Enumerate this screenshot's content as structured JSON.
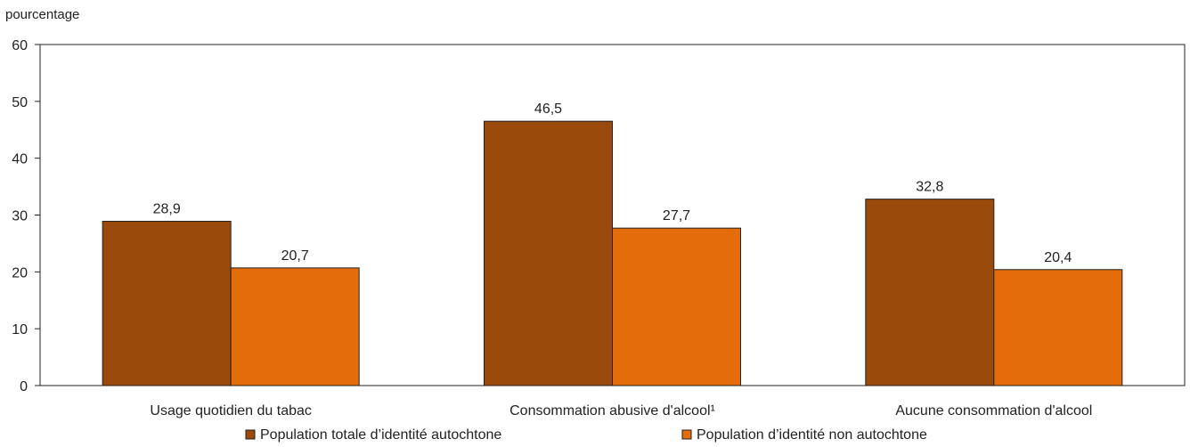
{
  "chart_data": {
    "type": "bar",
    "ylabel": "pourcentage",
    "ylim": [
      0,
      60
    ],
    "yticks": [
      0,
      10,
      20,
      30,
      40,
      50,
      60
    ],
    "grid": false,
    "legend_position": "bottom",
    "categories": [
      "Usage quotidien du tabac",
      "Consommation abusive d'alcool¹",
      "Aucune consommation d'alcool"
    ],
    "series": [
      {
        "name": "Population totale d’identité autochtone",
        "color": "#9a4a0b",
        "values": [
          28.9,
          46.5,
          32.8
        ],
        "labels": [
          "28,9",
          "46,5",
          "32,8"
        ]
      },
      {
        "name": "Population d’identité non autochtone",
        "color": "#e46c0a",
        "values": [
          20.7,
          27.7,
          20.4
        ],
        "labels": [
          "20,7",
          "27,7",
          "20,4"
        ]
      }
    ]
  }
}
